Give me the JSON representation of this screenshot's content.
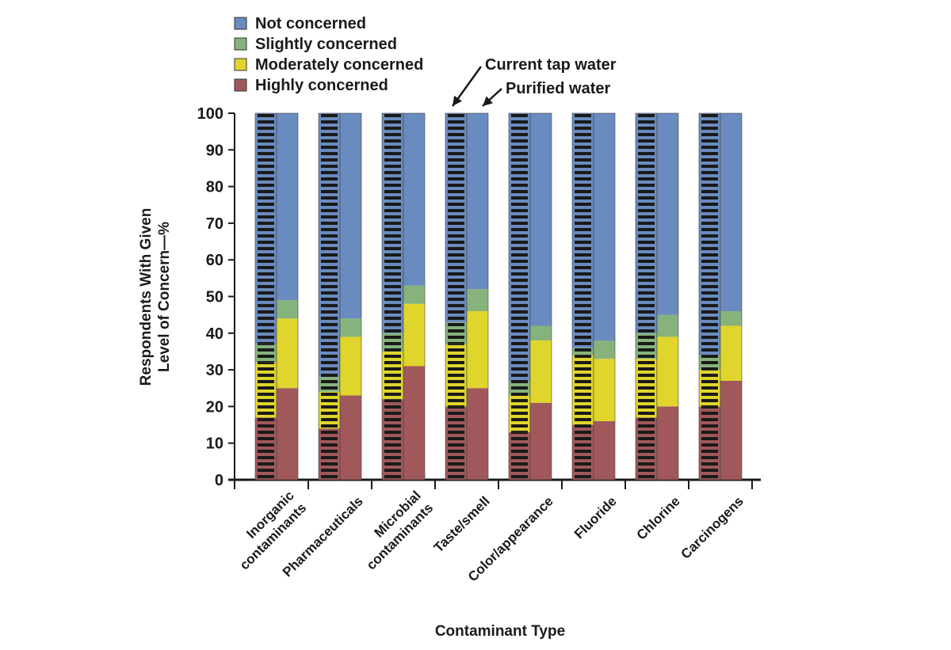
{
  "chart_data": {
    "type": "bar",
    "stacked": true,
    "paired_bars": true,
    "title": "",
    "xlabel": "Contaminant Type",
    "ylabel_lines": [
      "Respondents With Given",
      "Level of Concern—%"
    ],
    "ylim": [
      0,
      100
    ],
    "yticks": [
      "0",
      "10",
      "20",
      "30",
      "40",
      "50",
      "60",
      "70",
      "80",
      "90",
      "100"
    ],
    "categories": [
      [
        "Inorganic",
        "contaminants"
      ],
      [
        "Pharmaceuticals"
      ],
      [
        "Microbial",
        "contaminants"
      ],
      [
        "Taste/smell"
      ],
      [
        "Color/appearance"
      ],
      [
        "Fluoride"
      ],
      [
        "Chlorine"
      ],
      [
        "Carcinogens"
      ]
    ],
    "series": [
      {
        "name": "Highly concerned",
        "color": "#a0585b",
        "current_tap_water": [
          17,
          14,
          22,
          20,
          13,
          15,
          17,
          20
        ],
        "purified_water": [
          25,
          23,
          31,
          25,
          21,
          16,
          20,
          27
        ]
      },
      {
        "name": "Moderately concerned",
        "color": "#e0d52c",
        "current_tap_water": [
          15,
          10,
          13,
          17,
          10,
          19,
          16,
          10
        ],
        "purified_water": [
          19,
          16,
          17,
          21,
          17,
          17,
          19,
          15
        ]
      },
      {
        "name": "Slightly concerned",
        "color": "#86b37c",
        "current_tap_water": [
          5,
          4,
          5,
          6,
          4,
          2,
          7,
          4
        ],
        "purified_water": [
          5,
          5,
          5,
          6,
          4,
          5,
          6,
          4
        ]
      },
      {
        "name": "Not concerned",
        "color": "#6a8bbf",
        "current_tap_water": [
          63,
          72,
          60,
          57,
          73,
          64,
          60,
          66
        ],
        "purified_water": [
          51,
          56,
          47,
          48,
          58,
          62,
          55,
          54
        ]
      }
    ],
    "legend_order": [
      "Not concerned",
      "Slightly concerned",
      "Moderately concerned",
      "Highly concerned"
    ],
    "legend_position": "top-left",
    "annotations": {
      "current": "Current tap water",
      "purified": "Purified water"
    },
    "current_bar_style": "horizontal black stripes",
    "grid": false
  }
}
